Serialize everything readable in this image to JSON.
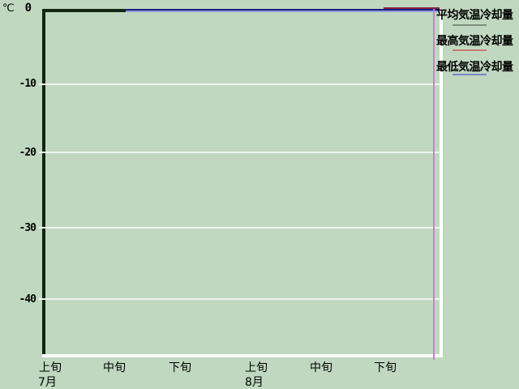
{
  "unit": "℃",
  "y_axis": {
    "ticks": [
      "0",
      "-10",
      "-20",
      "-30",
      "-40"
    ]
  },
  "x_axis": {
    "periods": [
      "上旬",
      "中旬",
      "下旬",
      "上旬",
      "中旬",
      "下旬"
    ],
    "months": [
      "7月",
      "8月"
    ]
  },
  "legend": {
    "items": [
      {
        "label": "平均気温冷却量",
        "line_color": "#7e8e7e"
      },
      {
        "label": "最高気温冷却量",
        "line_color": "#cb7a70"
      },
      {
        "label": "最低気温冷却量",
        "line_color": "#7787cb"
      }
    ]
  },
  "colors": {
    "background": "#c0d8c0",
    "axis_dark": "#122611",
    "axis_highlight": "#ffffff",
    "gridline": "#edf5ed",
    "min_series_shadow": "#1d1d7c",
    "min_series_highlight": "#8f9fdc",
    "max_series": "#832440",
    "drop_marker": "#cc80d0",
    "text": "#000000"
  },
  "chart_data": {
    "type": "line",
    "title": "",
    "ylabel": "℃",
    "yticks": [
      0,
      -10,
      -20,
      -30,
      -40
    ],
    "ylim": [
      -48,
      0
    ],
    "grid": true,
    "legend_position": "top-right",
    "x_categories": [
      "7月上旬",
      "7月中旬",
      "7月下旬",
      "8月上旬",
      "8月中旬",
      "8月下旬"
    ],
    "series": [
      {
        "name": "平均気温冷却量",
        "color": "#7e8e7e",
        "values": [
          0,
          0,
          0,
          0,
          0,
          0
        ]
      },
      {
        "name": "最高気温冷却量",
        "color": "#cb7a70",
        "values": [
          null,
          null,
          null,
          null,
          null,
          0
        ]
      },
      {
        "name": "最低気温冷却量",
        "color": "#7787cb",
        "values": [
          null,
          0,
          0,
          0,
          0,
          0
        ]
      }
    ],
    "annotations": [
      {
        "type": "vertical-line",
        "color": "#cc80d0",
        "x": "8月下旬 (right edge)",
        "note": "line drops off the bottom of the scale at the final point"
      }
    ]
  }
}
